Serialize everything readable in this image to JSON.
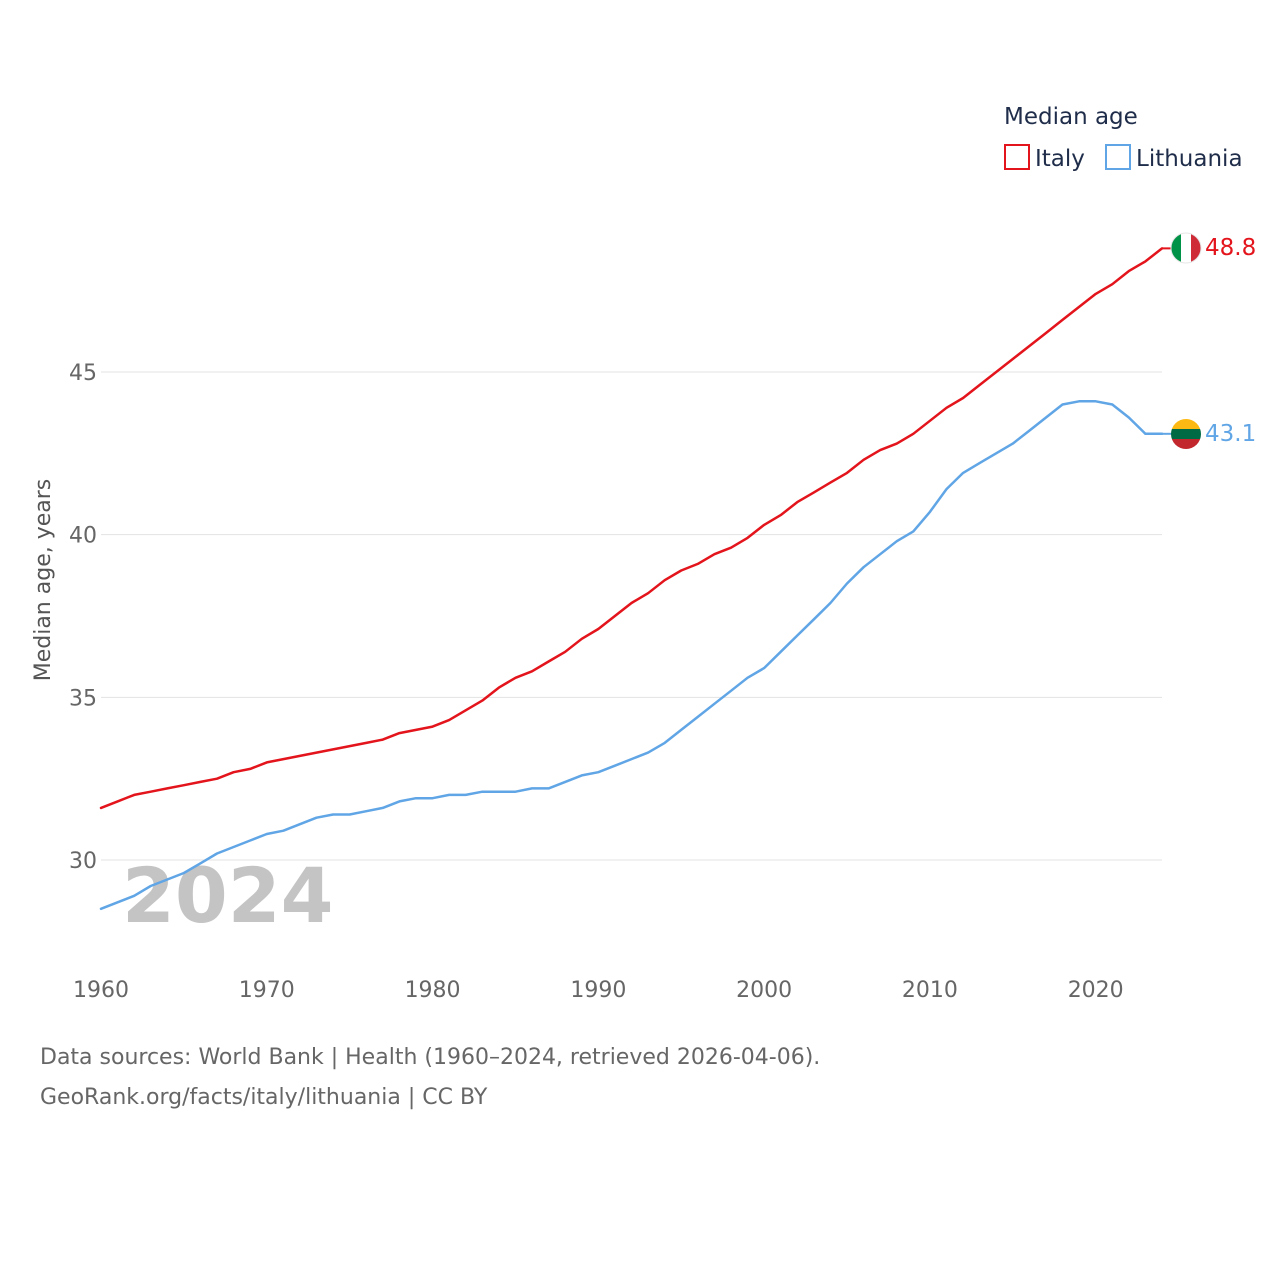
{
  "chart_data": {
    "type": "line",
    "legend_title": "Median age",
    "ylabel": "Median age, years",
    "ylim": [
      26.5,
      49.5
    ],
    "yticks": [
      30,
      35,
      40,
      45
    ],
    "xlim": [
      1960,
      2024
    ],
    "xticks": [
      1960,
      1970,
      1980,
      1990,
      2000,
      2010,
      2020
    ],
    "grid": true,
    "legend_position": "top-right",
    "watermark_year": "2024",
    "x": [
      1960,
      1961,
      1962,
      1963,
      1964,
      1965,
      1966,
      1967,
      1968,
      1969,
      1970,
      1971,
      1972,
      1973,
      1974,
      1975,
      1976,
      1977,
      1978,
      1979,
      1980,
      1981,
      1982,
      1983,
      1984,
      1985,
      1986,
      1987,
      1988,
      1989,
      1990,
      1991,
      1992,
      1993,
      1994,
      1995,
      1996,
      1997,
      1998,
      1999,
      2000,
      2001,
      2002,
      2003,
      2004,
      2005,
      2006,
      2007,
      2008,
      2009,
      2010,
      2011,
      2012,
      2013,
      2014,
      2015,
      2016,
      2017,
      2018,
      2019,
      2020,
      2021,
      2022,
      2023,
      2024
    ],
    "series": [
      {
        "name": "Italy",
        "color": "#e3141b",
        "end_label": "48.8",
        "values": [
          31.6,
          31.8,
          32.0,
          32.1,
          32.2,
          32.3,
          32.4,
          32.5,
          32.7,
          32.8,
          33.0,
          33.1,
          33.2,
          33.3,
          33.4,
          33.5,
          33.6,
          33.7,
          33.9,
          34.0,
          34.1,
          34.3,
          34.6,
          34.9,
          35.3,
          35.6,
          35.8,
          36.1,
          36.4,
          36.8,
          37.1,
          37.5,
          37.9,
          38.2,
          38.6,
          38.9,
          39.1,
          39.4,
          39.6,
          39.9,
          40.3,
          40.6,
          41.0,
          41.3,
          41.6,
          41.9,
          42.3,
          42.6,
          42.8,
          43.1,
          43.5,
          43.9,
          44.2,
          44.6,
          45.0,
          45.4,
          45.8,
          46.2,
          46.6,
          47.0,
          47.4,
          47.7,
          48.1,
          48.4,
          48.8
        ]
      },
      {
        "name": "Lithuania",
        "color": "#60a5e5",
        "end_label": "43.1",
        "values": [
          28.5,
          28.7,
          28.9,
          29.2,
          29.4,
          29.6,
          29.9,
          30.2,
          30.4,
          30.6,
          30.8,
          30.9,
          31.1,
          31.3,
          31.4,
          31.4,
          31.5,
          31.6,
          31.8,
          31.9,
          31.9,
          32.0,
          32.0,
          32.1,
          32.1,
          32.1,
          32.2,
          32.2,
          32.4,
          32.6,
          32.7,
          32.9,
          33.1,
          33.3,
          33.6,
          34.0,
          34.4,
          34.8,
          35.2,
          35.6,
          35.9,
          36.4,
          36.9,
          37.4,
          37.9,
          38.5,
          39.0,
          39.4,
          39.8,
          40.1,
          40.7,
          41.4,
          41.9,
          42.2,
          42.5,
          42.8,
          43.2,
          43.6,
          44.0,
          44.1,
          44.1,
          44.0,
          43.6,
          43.1,
          43.1
        ]
      }
    ],
    "source_line": "Data sources: World Bank | Health (1960–2024, retrieved 2026-04-06).",
    "credit_line": "GeoRank.org/facts/italy/lithuania | CC BY"
  }
}
